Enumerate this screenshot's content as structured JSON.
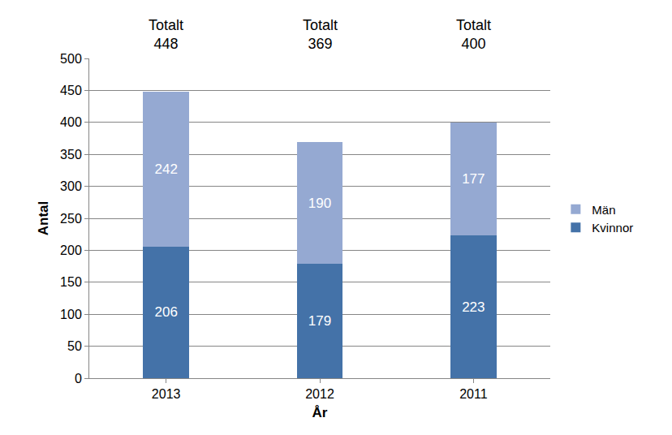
{
  "chart_data": {
    "type": "bar",
    "stacked": true,
    "categories": [
      "2013",
      "2012",
      "2011"
    ],
    "series": [
      {
        "name": "Kvinnor",
        "color": "#4472a8",
        "values": [
          206,
          179,
          223
        ]
      },
      {
        "name": "Män",
        "color": "#95a9d2",
        "values": [
          242,
          190,
          177
        ]
      }
    ],
    "totals_label": "Totalt",
    "totals": [
      448,
      369,
      400
    ],
    "x_label": "År",
    "y_label": "Antal",
    "ylim": [
      0,
      500
    ],
    "yticks": [
      0,
      50,
      100,
      150,
      200,
      250,
      300,
      350,
      400,
      450,
      500
    ],
    "grid": true,
    "legend": "right",
    "data_labels": true
  }
}
